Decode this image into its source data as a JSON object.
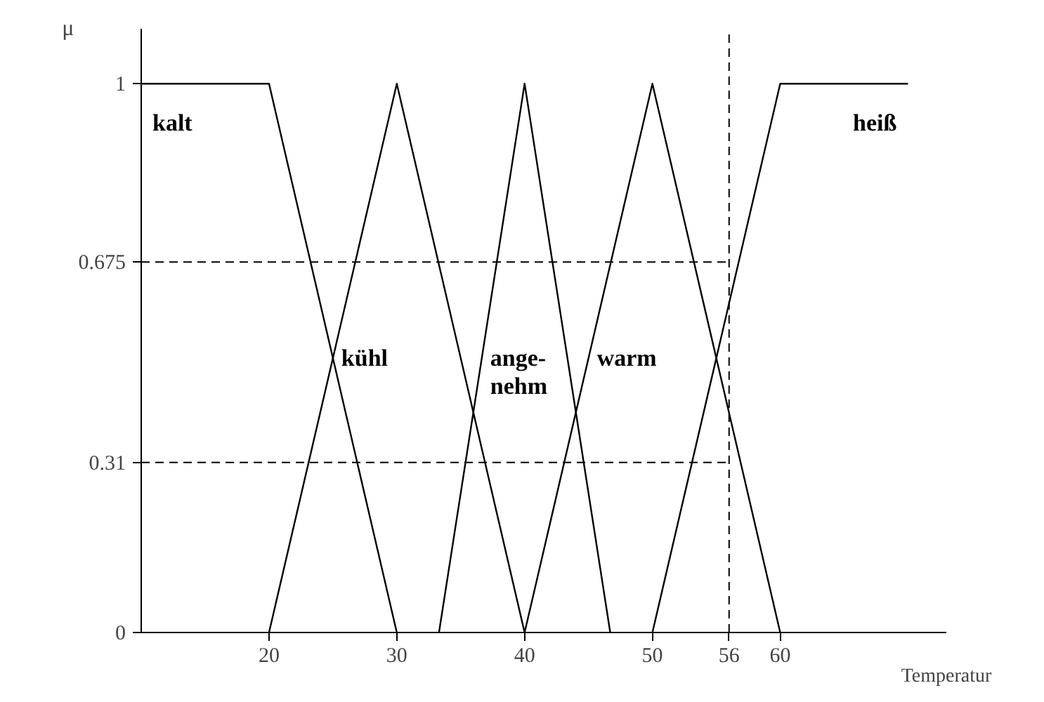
{
  "chart_data": {
    "type": "line",
    "xlabel": "Temperatur",
    "ylabel": "μ",
    "xlim": [
      10,
      73
    ],
    "ylim": [
      0,
      1.1
    ],
    "xticks": [
      20,
      30,
      40,
      50,
      56,
      60
    ],
    "yticks": [
      0,
      0.31,
      0.675,
      1
    ],
    "grid": false,
    "marker": "none",
    "line_style": "solid",
    "series": [
      {
        "name": "kalt",
        "color": "#000000",
        "x": [
          10,
          20,
          30
        ],
        "values": [
          1,
          1,
          0
        ]
      },
      {
        "name": "kühl",
        "color": "#000000",
        "x": [
          20,
          30,
          40
        ],
        "values": [
          0,
          1,
          0
        ]
      },
      {
        "name": "ange-\nnehm",
        "color": "#000000",
        "x": [
          33.3,
          40,
          46.7
        ],
        "values": [
          0,
          1,
          0
        ]
      },
      {
        "name": "warm",
        "color": "#000000",
        "x": [
          40,
          50,
          60
        ],
        "values": [
          0,
          1,
          0
        ]
      },
      {
        "name": "heiß",
        "color": "#000000",
        "x": [
          50,
          60,
          70
        ],
        "values": [
          0,
          1,
          1
        ]
      }
    ],
    "ref_lines": [
      {
        "axis": "y",
        "value": 0.675,
        "line_style": "dashed"
      },
      {
        "axis": "y",
        "value": 0.31,
        "line_style": "dashed"
      },
      {
        "axis": "x",
        "value": 56,
        "line_style": "dashed"
      }
    ]
  }
}
